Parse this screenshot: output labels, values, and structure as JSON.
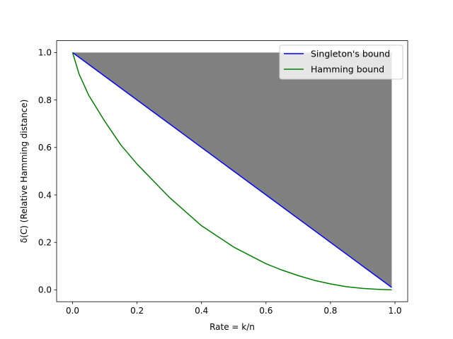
{
  "chart_data": {
    "type": "line",
    "title": "",
    "xlabel": "Rate = k/n",
    "ylabel": "δ(C) (Relative Hamming distance)",
    "xlim": [
      -0.0495,
      1.0395
    ],
    "ylim": [
      -0.05,
      1.05
    ],
    "xticks": [
      "0.0",
      "0.2",
      "0.4",
      "0.6",
      "0.8",
      "1.0"
    ],
    "yticks": [
      "0.0",
      "0.2",
      "0.4",
      "0.6",
      "0.8",
      "1.0"
    ],
    "grid": false,
    "legend_position": "top-right",
    "series": [
      {
        "name": "Singleton's bound",
        "color": "#0000ff",
        "x": [
          0.0,
          0.99
        ],
        "y": [
          1.0,
          0.01
        ]
      },
      {
        "name": "Hamming bound",
        "color": "#008000",
        "x": [
          0.0,
          0.02,
          0.05,
          0.1,
          0.15,
          0.2,
          0.25,
          0.3,
          0.35,
          0.4,
          0.45,
          0.5,
          0.55,
          0.6,
          0.65,
          0.7,
          0.75,
          0.8,
          0.85,
          0.9,
          0.95,
          0.99
        ],
        "y": [
          1.0,
          0.91,
          0.82,
          0.71,
          0.61,
          0.53,
          0.46,
          0.39,
          0.33,
          0.27,
          0.225,
          0.18,
          0.145,
          0.11,
          0.083,
          0.06,
          0.04,
          0.025,
          0.013,
          0.006,
          0.002,
          0.0
        ]
      }
    ],
    "fill": {
      "color": "#808080",
      "description_bound": "between Singleton's bound and y = 1.0",
      "x_range": [
        0.0,
        0.99
      ]
    }
  }
}
